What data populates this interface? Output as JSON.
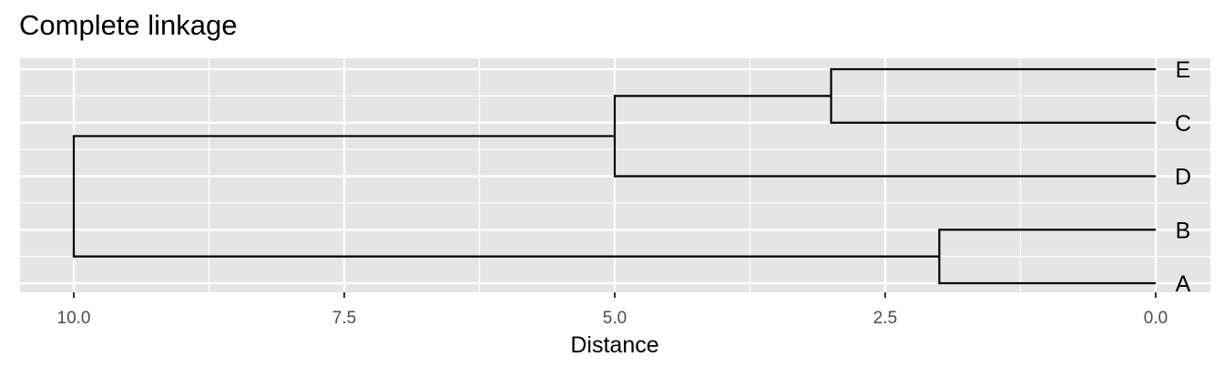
{
  "chart_data": {
    "type": "dendrogram",
    "title": "Complete linkage",
    "xlabel": "Distance",
    "ylabel": "",
    "xlim": [
      10.4,
      0
    ],
    "x_reversed": true,
    "x_ticks": [
      10.0,
      7.5,
      5.0,
      2.5,
      0.0
    ],
    "x_tick_labels": [
      "10.0",
      "7.5",
      "5.0",
      "2.5",
      "0.0"
    ],
    "leaves": [
      "E",
      "C",
      "D",
      "B",
      "A"
    ],
    "merges": [
      {
        "children": [
          "E",
          "C"
        ],
        "height": 3.0
      },
      {
        "children": [
          "B",
          "A"
        ],
        "height": 2.0
      },
      {
        "children": [
          "E+C",
          "D"
        ],
        "height": 5.0
      },
      {
        "children": [
          "E+C+D",
          "B+A"
        ],
        "height": 10.0
      }
    ],
    "grid": true,
    "panel_background": "#e5e5e5",
    "grid_color": "#ffffff",
    "line_color": "#000000"
  }
}
